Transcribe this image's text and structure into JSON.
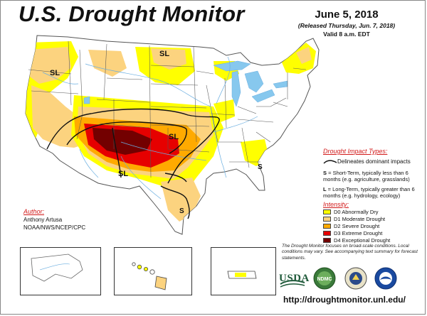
{
  "header": {
    "title": "U.S. Drought Monitor",
    "date": "June 5, 2018",
    "released": "(Released Thursday, Jun. 7, 2018)",
    "valid": "Valid 8 a.m. EDT"
  },
  "impact_types": {
    "title": "Drought Impact Types:",
    "delineates": "Delineates dominant impacts",
    "short_term_key": "S",
    "short_term_text": " = Short-Term, typically less than 6 months (e.g. agriculture, grasslands)",
    "long_term_key": "L",
    "long_term_text": " = Long-Term, typically greater than 6 months (e.g. hydrology, ecology)"
  },
  "intensity": {
    "title": "Intensity:",
    "levels": [
      {
        "label": "D0 Abnormally Dry",
        "color": "#ffff00"
      },
      {
        "label": "D1 Moderate Drought",
        "color": "#fcd37f"
      },
      {
        "label": "D2 Severe Drought",
        "color": "#ffaa00"
      },
      {
        "label": "D3 Extreme Drought",
        "color": "#e60000"
      },
      {
        "label": "D4 Exceptional Drought",
        "color": "#730000"
      }
    ]
  },
  "map_labels": {
    "sl_northwest": "SL",
    "sl_north_dakota": "SL",
    "sl_kansas": "SL",
    "sl_new_mexico": "SL",
    "s_texas": "S",
    "s_georgia": "S"
  },
  "author": {
    "heading": "Author:",
    "name": "Anthony Artusa",
    "org": "NOAA/NWS/NCEP/CPC"
  },
  "note": "The Drought Monitor focuses on broad-scale conditions. Local conditions may vary. See accompanying text summary for forecast statements.",
  "logos": {
    "usda": "USDA",
    "ndmc": "NDMC",
    "doc": "DOC",
    "noaa": "NOAA"
  },
  "url": "http://droughtmonitor.unl.edu/",
  "colors": {
    "water": "#87c8ee",
    "state_border": "#555555",
    "river": "#6aaee0"
  }
}
